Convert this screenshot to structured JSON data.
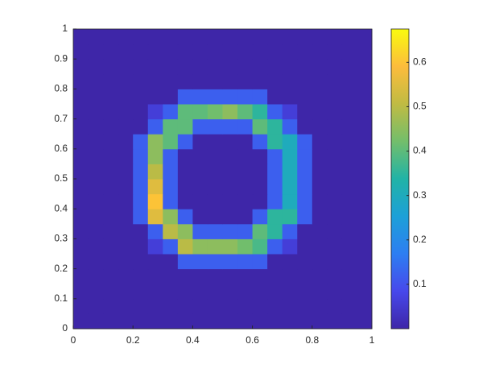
{
  "chart_data": {
    "type": "heatmap",
    "xlim": [
      0,
      1
    ],
    "ylim": [
      0,
      1
    ],
    "xticks": [
      0,
      0.2,
      0.4,
      0.6,
      0.8,
      1
    ],
    "yticks": [
      0,
      0.1,
      0.2,
      0.3,
      0.4,
      0.5,
      0.6,
      0.7,
      0.8,
      0.9,
      1
    ],
    "clim": [
      0,
      0.675
    ],
    "cticks": [
      0.1,
      0.2,
      0.3,
      0.4,
      0.5,
      0.6
    ],
    "colormap": [
      "#3e26a8",
      "#4748eb",
      "#2d7ef2",
      "#1ca0d8",
      "#21b3a6",
      "#73be6b",
      "#c0bb43",
      "#fcbc3c",
      "#f9fb0e"
    ],
    "z": [
      [
        0,
        0,
        0,
        0,
        0,
        0,
        0,
        0,
        0,
        0,
        0,
        0,
        0,
        0,
        0,
        0,
        0,
        0,
        0,
        0
      ],
      [
        0,
        0,
        0,
        0,
        0,
        0,
        0,
        0,
        0,
        0,
        0,
        0,
        0,
        0,
        0,
        0,
        0,
        0,
        0,
        0
      ],
      [
        0,
        0,
        0,
        0,
        0,
        0,
        0,
        0,
        0,
        0,
        0,
        0,
        0,
        0,
        0,
        0,
        0,
        0,
        0,
        0
      ],
      [
        0,
        0,
        0,
        0,
        0,
        0,
        0,
        0,
        0,
        0,
        0,
        0,
        0,
        0,
        0,
        0,
        0,
        0,
        0,
        0
      ],
      [
        0,
        0,
        0,
        0,
        0,
        0,
        0,
        0.12,
        0.12,
        0.12,
        0.12,
        0.12,
        0.12,
        0,
        0,
        0,
        0,
        0,
        0,
        0
      ],
      [
        0,
        0,
        0,
        0,
        0,
        0.06,
        0.12,
        0.5,
        0.45,
        0.45,
        0.45,
        0.42,
        0.38,
        0.12,
        0.06,
        0,
        0,
        0,
        0,
        0
      ],
      [
        0,
        0,
        0,
        0,
        0,
        0.12,
        0.5,
        0.45,
        0.12,
        0.12,
        0.12,
        0.12,
        0.4,
        0.35,
        0.12,
        0,
        0,
        0,
        0,
        0
      ],
      [
        0,
        0,
        0,
        0,
        0.12,
        0.55,
        0.45,
        0.12,
        0,
        0,
        0,
        0,
        0.12,
        0.35,
        0.35,
        0.12,
        0,
        0,
        0,
        0
      ],
      [
        0,
        0,
        0,
        0,
        0.12,
        0.6,
        0.12,
        0,
        0,
        0,
        0,
        0,
        0,
        0.12,
        0.3,
        0.12,
        0,
        0,
        0,
        0
      ],
      [
        0,
        0,
        0,
        0,
        0.12,
        0.55,
        0.12,
        0,
        0,
        0,
        0,
        0,
        0,
        0.12,
        0.3,
        0.12,
        0,
        0,
        0,
        0
      ],
      [
        0,
        0,
        0,
        0,
        0.12,
        0.5,
        0.12,
        0,
        0,
        0,
        0,
        0,
        0,
        0.12,
        0.3,
        0.12,
        0,
        0,
        0,
        0
      ],
      [
        0,
        0,
        0,
        0,
        0.12,
        0.45,
        0.12,
        0,
        0,
        0,
        0,
        0,
        0,
        0.12,
        0.3,
        0.12,
        0,
        0,
        0,
        0
      ],
      [
        0,
        0,
        0,
        0,
        0.12,
        0.45,
        0.4,
        0.12,
        0,
        0,
        0,
        0,
        0.12,
        0.35,
        0.3,
        0.12,
        0,
        0,
        0,
        0
      ],
      [
        0,
        0,
        0,
        0,
        0,
        0.12,
        0.4,
        0.4,
        0.12,
        0.12,
        0.12,
        0.12,
        0.4,
        0.35,
        0.12,
        0,
        0,
        0,
        0,
        0
      ],
      [
        0,
        0,
        0,
        0,
        0,
        0.06,
        0.12,
        0.4,
        0.4,
        0.42,
        0.45,
        0.4,
        0.35,
        0.12,
        0.06,
        0,
        0,
        0,
        0,
        0
      ],
      [
        0,
        0,
        0,
        0,
        0,
        0,
        0,
        0.12,
        0.12,
        0.12,
        0.12,
        0.12,
        0.12,
        0,
        0,
        0,
        0,
        0,
        0,
        0
      ],
      [
        0,
        0,
        0,
        0,
        0,
        0,
        0,
        0,
        0,
        0,
        0,
        0,
        0,
        0,
        0,
        0,
        0,
        0,
        0,
        0
      ],
      [
        0,
        0,
        0,
        0,
        0,
        0,
        0,
        0,
        0,
        0,
        0,
        0,
        0,
        0,
        0,
        0,
        0,
        0,
        0,
        0
      ],
      [
        0,
        0,
        0,
        0,
        0,
        0,
        0,
        0,
        0,
        0,
        0,
        0,
        0,
        0,
        0,
        0,
        0,
        0,
        0,
        0
      ],
      [
        0,
        0,
        0,
        0,
        0,
        0,
        0,
        0,
        0,
        0,
        0,
        0,
        0,
        0,
        0,
        0,
        0,
        0,
        0,
        0
      ]
    ]
  }
}
